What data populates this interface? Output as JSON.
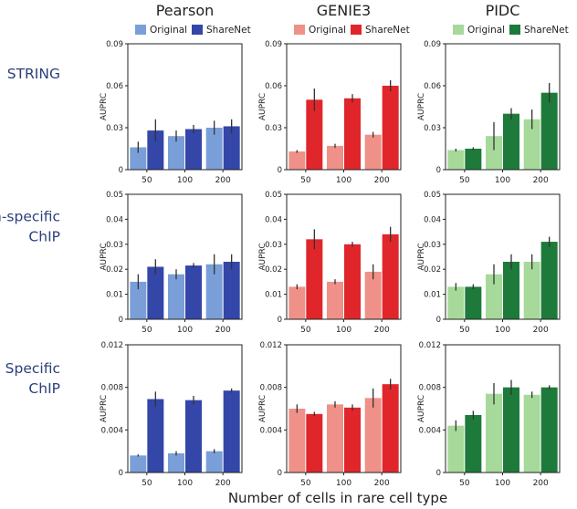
{
  "figure": {
    "x_axis_title": "Number of cells in rare cell type",
    "y_axis_label": "AUPRC"
  },
  "columns": [
    {
      "method": "Pearson",
      "legend": [
        "Original",
        "ShareNet"
      ],
      "colors": [
        "#7a9fd8",
        "#3446a8"
      ]
    },
    {
      "method": "GENIE3",
      "legend": [
        "Original",
        "ShareNet"
      ],
      "colors": [
        "#ef9188",
        "#e0262a"
      ]
    },
    {
      "method": "PIDC",
      "legend": [
        "Original",
        "ShareNet"
      ],
      "colors": [
        "#a6d99a",
        "#1d7a3a"
      ]
    }
  ],
  "rows": [
    {
      "label_lines": [
        "STRING"
      ],
      "ylim": [
        0,
        0.09
      ],
      "yticks": [
        "0",
        "0.03",
        "0.06",
        "0.09"
      ],
      "yticks_values": [
        0,
        0.03,
        0.06,
        0.09
      ]
    },
    {
      "label_lines": [
        "Non-specific",
        "ChIP"
      ],
      "ylim": [
        0,
        0.05
      ],
      "yticks": [
        "0",
        "0.01",
        "0.02",
        "0.03",
        "0.04",
        "0.05"
      ],
      "yticks_values": [
        0,
        0.01,
        0.02,
        0.03,
        0.04,
        0.05
      ]
    },
    {
      "label_lines": [
        "Specific",
        "ChIP"
      ],
      "ylim": [
        0,
        0.012
      ],
      "yticks": [
        "0",
        "0.004",
        "0.008",
        "0.012"
      ],
      "yticks_values": [
        0,
        0.004,
        0.008,
        0.012
      ]
    }
  ],
  "chart_data": {
    "type": "bar",
    "title": "",
    "xlabel": "Number of cells in rare cell type",
    "ylabel": "AUPRC",
    "categories": [
      "50",
      "100",
      "200"
    ],
    "panels": [
      {
        "row": "STRING",
        "method": "Pearson",
        "series": [
          {
            "name": "Original",
            "values": [
              0.016,
              0.024,
              0.03
            ],
            "errors": [
              0.004,
              0.004,
              0.005
            ]
          },
          {
            "name": "ShareNet",
            "values": [
              0.028,
              0.029,
              0.031
            ],
            "errors": [
              0.008,
              0.003,
              0.005
            ]
          }
        ]
      },
      {
        "row": "STRING",
        "method": "GENIE3",
        "series": [
          {
            "name": "Original",
            "values": [
              0.013,
              0.017,
              0.025
            ],
            "errors": [
              0.001,
              0.0015,
              0.002
            ]
          },
          {
            "name": "ShareNet",
            "values": [
              0.05,
              0.051,
              0.06
            ],
            "errors": [
              0.008,
              0.003,
              0.004
            ]
          }
        ]
      },
      {
        "row": "STRING",
        "method": "PIDC",
        "series": [
          {
            "name": "Original",
            "values": [
              0.014,
              0.024,
              0.036
            ],
            "errors": [
              0.001,
              0.01,
              0.007
            ]
          },
          {
            "name": "ShareNet",
            "values": [
              0.015,
              0.04,
              0.055
            ],
            "errors": [
              0.001,
              0.004,
              0.007
            ]
          }
        ]
      },
      {
        "row": "Non-specific ChIP",
        "method": "Pearson",
        "series": [
          {
            "name": "Original",
            "values": [
              0.015,
              0.018,
              0.022
            ],
            "errors": [
              0.003,
              0.002,
              0.004
            ]
          },
          {
            "name": "ShareNet",
            "values": [
              0.021,
              0.0215,
              0.023
            ],
            "errors": [
              0.003,
              0.001,
              0.003
            ]
          }
        ]
      },
      {
        "row": "Non-specific ChIP",
        "method": "GENIE3",
        "series": [
          {
            "name": "Original",
            "values": [
              0.013,
              0.015,
              0.019
            ],
            "errors": [
              0.001,
              0.001,
              0.003
            ]
          },
          {
            "name": "ShareNet",
            "values": [
              0.032,
              0.03,
              0.034
            ],
            "errors": [
              0.004,
              0.001,
              0.003
            ]
          }
        ]
      },
      {
        "row": "Non-specific ChIP",
        "method": "PIDC",
        "series": [
          {
            "name": "Original",
            "values": [
              0.013,
              0.018,
              0.023
            ],
            "errors": [
              0.0015,
              0.004,
              0.003
            ]
          },
          {
            "name": "ShareNet",
            "values": [
              0.013,
              0.023,
              0.031
            ],
            "errors": [
              0.001,
              0.003,
              0.002
            ]
          }
        ]
      },
      {
        "row": "Specific ChIP",
        "method": "Pearson",
        "series": [
          {
            "name": "Original",
            "values": [
              0.0016,
              0.0018,
              0.002
            ],
            "errors": [
              0.0001,
              0.0002,
              0.0002
            ]
          },
          {
            "name": "ShareNet",
            "values": [
              0.0069,
              0.0068,
              0.0077
            ],
            "errors": [
              0.0007,
              0.0004,
              0.0002
            ]
          }
        ]
      },
      {
        "row": "Specific ChIP",
        "method": "GENIE3",
        "series": [
          {
            "name": "Original",
            "values": [
              0.006,
              0.0064,
              0.007
            ],
            "errors": [
              0.0004,
              0.0003,
              0.0009
            ]
          },
          {
            "name": "ShareNet",
            "values": [
              0.0055,
              0.0061,
              0.0083
            ],
            "errors": [
              0.0002,
              0.0003,
              0.0005
            ]
          }
        ]
      },
      {
        "row": "Specific ChIP",
        "method": "PIDC",
        "series": [
          {
            "name": "Original",
            "values": [
              0.0044,
              0.0074,
              0.0073
            ],
            "errors": [
              0.0005,
              0.001,
              0.0003
            ]
          },
          {
            "name": "ShareNet",
            "values": [
              0.0054,
              0.008,
              0.008
            ],
            "errors": [
              0.0004,
              0.0007,
              0.0002
            ]
          }
        ]
      }
    ]
  }
}
